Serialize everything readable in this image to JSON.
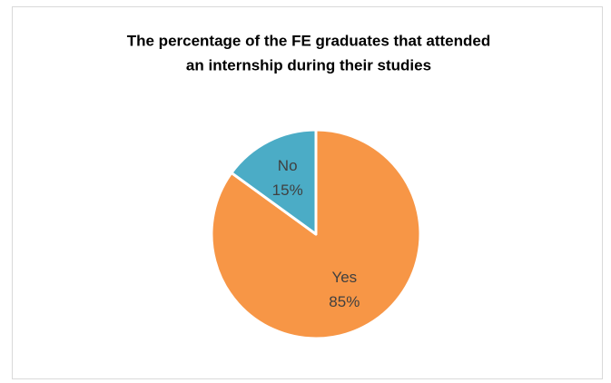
{
  "chart_data": {
    "type": "pie",
    "title": [
      "The percentage of the FE graduates that attended",
      "an internship during their studies"
    ],
    "categories": [
      "Yes",
      "No"
    ],
    "values": [
      85,
      15
    ],
    "value_labels": [
      "85%",
      "15%"
    ],
    "colors": [
      "#f79646",
      "#4bacc6"
    ]
  }
}
